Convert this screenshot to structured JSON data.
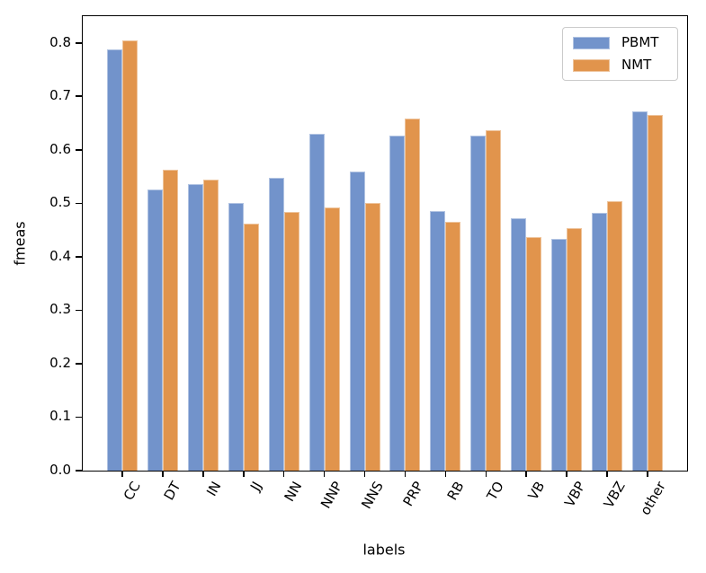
{
  "chart_data": {
    "type": "bar",
    "title": "",
    "xlabel": "labels",
    "ylabel": "fmeas",
    "categories": [
      "CC",
      "DT",
      "IN",
      "JJ",
      "NN",
      "NNP",
      "NNS",
      "PRP",
      "RB",
      "TO",
      "VB",
      "VBP",
      "VBZ",
      "other"
    ],
    "series": [
      {
        "name": "PBMT",
        "color": "#7293cb",
        "values": [
          0.788,
          0.525,
          0.536,
          0.5,
          0.548,
          0.63,
          0.56,
          0.627,
          0.486,
          0.626,
          0.472,
          0.434,
          0.482,
          0.672
        ]
      },
      {
        "name": "NMT",
        "color": "#e1944c",
        "values": [
          0.805,
          0.563,
          0.545,
          0.462,
          0.483,
          0.493,
          0.5,
          0.658,
          0.466,
          0.637,
          0.437,
          0.453,
          0.504,
          0.665
        ]
      }
    ],
    "ylim": [
      0,
      0.85
    ],
    "yticks": [
      "0.0",
      "0.1",
      "0.2",
      "0.3",
      "0.4",
      "0.5",
      "0.6",
      "0.7",
      "0.8"
    ],
    "x_tick_rotation": 60,
    "grid": false,
    "legend_position": "upper right",
    "axis_color": "#000000",
    "background_color": "#ffffff",
    "legend_border_color": "#cbcbcb"
  }
}
